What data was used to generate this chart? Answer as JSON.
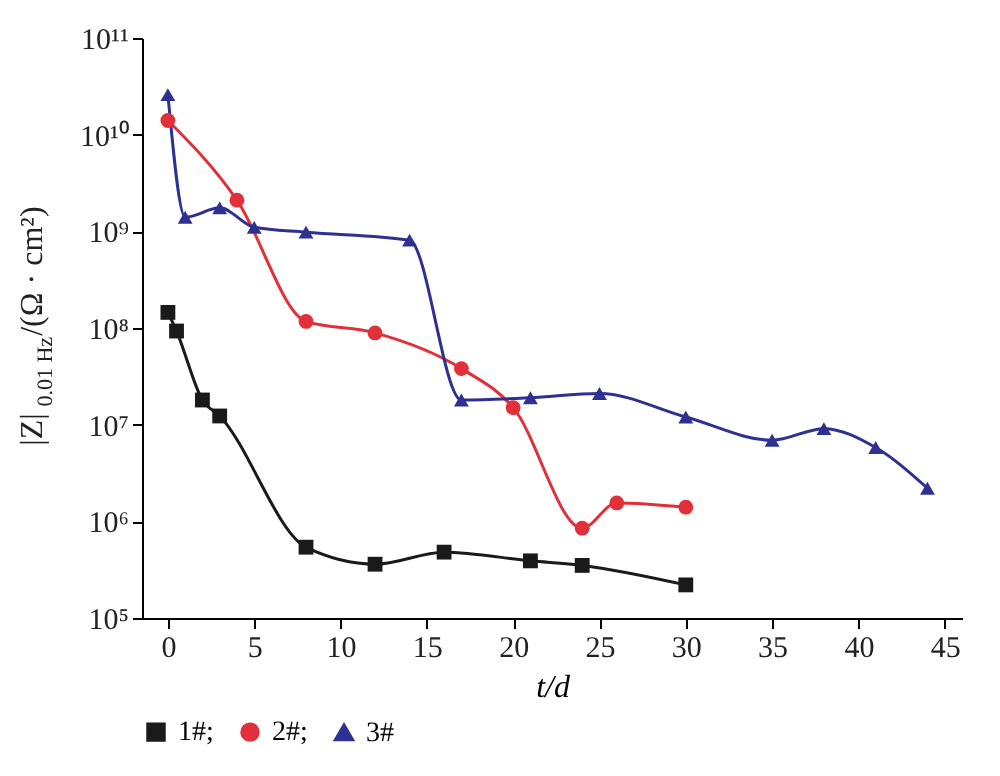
{
  "chart_data": {
    "type": "line",
    "xlabel": "t/d",
    "ylabel": "|Z|$_{0.01 Hz}$/(Ω · cm²)",
    "log": "y",
    "grid": false,
    "legend": "bottom",
    "line_style": "solid",
    "xlim": [
      -1.5,
      46
    ],
    "xticks": [
      0,
      5,
      10,
      15,
      20,
      25,
      30,
      35,
      40,
      45
    ],
    "ylim": [
      100000,
      100000000000
    ],
    "yticks": [
      {
        "value": 100000,
        "label": "10⁵"
      },
      {
        "value": 1000000,
        "label": "10⁶"
      },
      {
        "value": 10000000,
        "label": "10⁷"
      },
      {
        "value": 100000000,
        "label": "10⁸"
      },
      {
        "value": 1000000000,
        "label": "10⁹"
      },
      {
        "value": 10000000000,
        "label": "10¹⁰"
      },
      {
        "value": 100000000000,
        "label": "10¹¹"
      }
    ],
    "series": [
      {
        "name": "1#;",
        "color": "#1a1a1a",
        "marker": "square",
        "x": [
          0,
          0.5,
          2,
          3,
          8,
          12,
          16,
          21,
          24,
          30
        ],
        "values": [
          145000000,
          93000000,
          18000000,
          12300000,
          540000,
          360000,
          480000,
          390000,
          350000,
          220000
        ]
      },
      {
        "name": "2#;",
        "color": "#e0303a",
        "marker": "circle",
        "x": [
          0,
          4,
          8,
          12,
          17,
          20,
          24,
          26,
          30
        ],
        "values": [
          14000000000,
          2100000000,
          117000000,
          89000000,
          38000000,
          15000000,
          850000,
          1550000,
          1400000
        ]
      },
      {
        "name": "3#",
        "color": "#2e3192",
        "marker": "triangle",
        "x": [
          0,
          1,
          3,
          5,
          8,
          14,
          17,
          21,
          25,
          30,
          35,
          38,
          41,
          44
        ],
        "values": [
          26000000000,
          1400000000,
          1750000000,
          1100000000,
          980000000,
          810000000,
          18000000,
          19000000,
          21000000,
          12000000,
          6900000,
          9100000,
          5800000,
          2200000
        ]
      }
    ]
  }
}
